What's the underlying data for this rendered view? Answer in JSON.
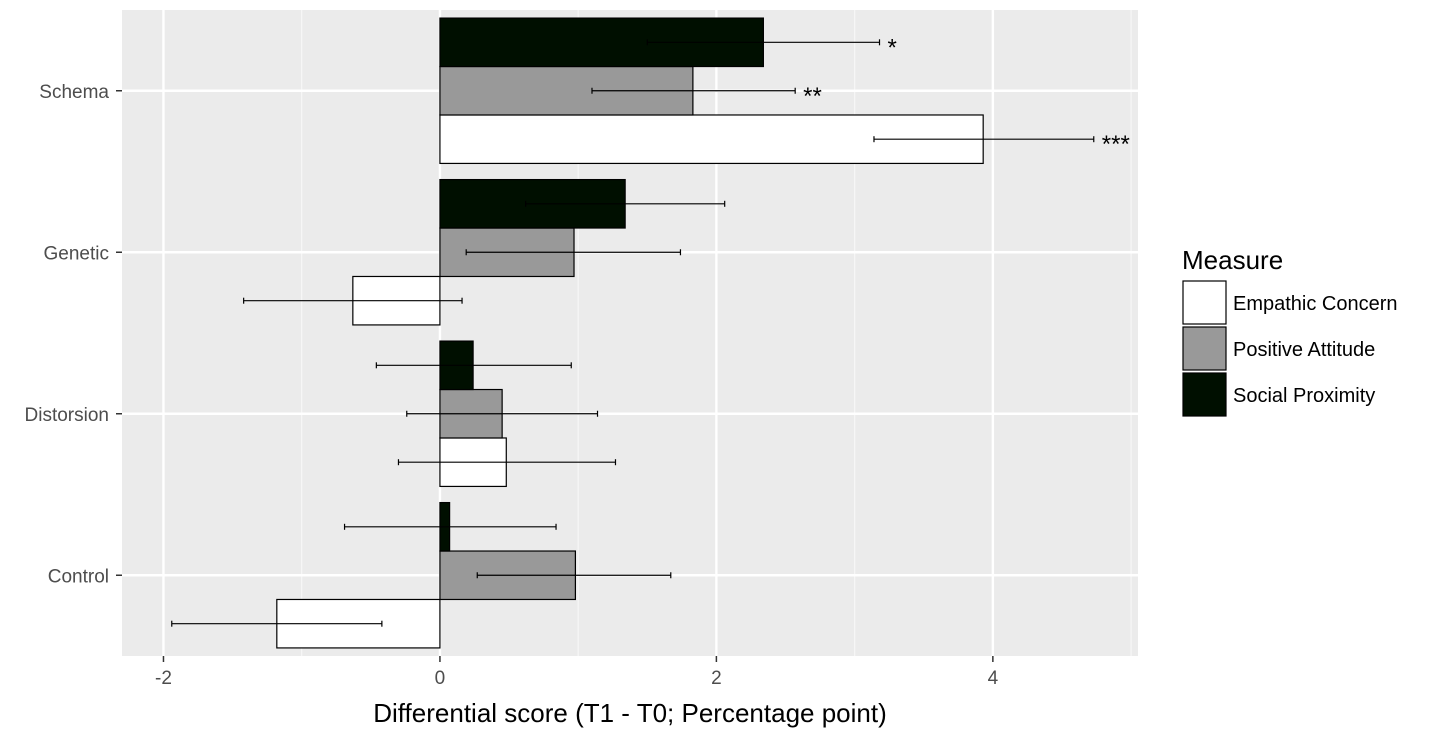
{
  "chart_data": {
    "type": "bar",
    "orientation": "horizontal",
    "categories": [
      "Schema",
      "Genetic",
      "Distorsion",
      "Control"
    ],
    "xlabel": "Differential score (T1 - T0; Percentage point)",
    "ylabel": "",
    "xlim": [
      -2.3,
      5.05
    ],
    "xticks": [
      -2,
      0,
      2,
      4
    ],
    "xtick_labels": [
      "-2",
      "0",
      "2",
      "4"
    ],
    "grid": true,
    "legend": {
      "title": "Measure",
      "position": "right"
    },
    "series": [
      {
        "name": "Empathic Concern",
        "color": "#ffffff",
        "values": [
          3.93,
          -0.63,
          0.48,
          -1.18
        ],
        "error_low": [
          3.14,
          -1.42,
          -0.3,
          -1.94
        ],
        "error_high": [
          4.73,
          0.16,
          1.27,
          -0.42
        ],
        "significance": [
          "***",
          "",
          "",
          ""
        ]
      },
      {
        "name": "Positive Attitude",
        "color": "#999999",
        "values": [
          1.83,
          0.97,
          0.45,
          0.98
        ],
        "error_low": [
          1.1,
          0.19,
          -0.24,
          0.27
        ],
        "error_high": [
          2.57,
          1.74,
          1.14,
          1.67
        ],
        "significance": [
          "**",
          "",
          "",
          ""
        ]
      },
      {
        "name": "Social Proximity",
        "color": "#000f00",
        "values": [
          2.34,
          1.34,
          0.24,
          0.07
        ],
        "error_low": [
          1.5,
          0.62,
          -0.46,
          -0.69
        ],
        "error_high": [
          3.18,
          2.06,
          0.95,
          0.84
        ],
        "significance": [
          "*",
          "",
          "",
          ""
        ]
      }
    ]
  }
}
